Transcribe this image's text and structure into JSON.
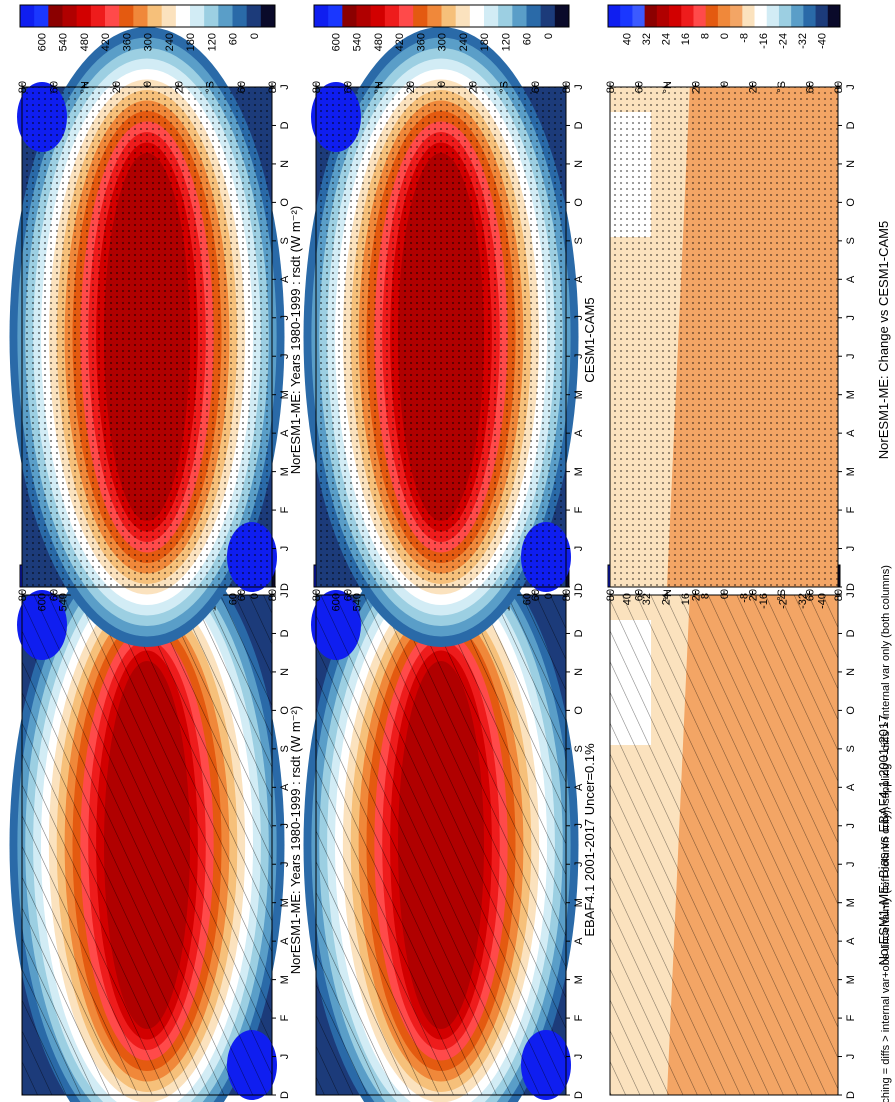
{
  "figure": {
    "footnote": "hatching = diffs > internal var+obs uncertainty (left column only); stippling = diffs > internal var only (both columns)",
    "month_labels": [
      "D",
      "J",
      "F",
      "M",
      "A",
      "M",
      "J",
      "J",
      "A",
      "S",
      "O",
      "N",
      "D",
      "J"
    ],
    "lat_labels": [
      "80",
      "60",
      "°N",
      "20",
      "0",
      "20",
      "°S",
      "60",
      "80"
    ]
  },
  "chart_data": [
    {
      "type": "heatmap",
      "title": "NorESM1-ME: Years 1980-1999 : rsdt (W m⁻²)",
      "field": "climatology",
      "pattern": "hatch",
      "variable": "rsdt",
      "unit": "W m-2",
      "colorbar": [
        "600",
        "540",
        "480",
        "420",
        "360",
        "300",
        "240",
        "180",
        "120",
        "60",
        "0"
      ],
      "colors": [
        "#0f1ef0",
        "#1a37ff",
        "#8b0000",
        "#b00000",
        "#d20000",
        "#ee1c1c",
        "#ff4a4a",
        "#e45a10",
        "#f0883a",
        "#f6c07a",
        "#fbe2be",
        "#ffffff",
        "#d2ecf5",
        "#9ccfe2",
        "#5a9ec8",
        "#2a6aa8",
        "#1c3b7a",
        "#0a0a2a"
      ]
    },
    {
      "type": "heatmap",
      "title": "NorESM1-ME: Years 1980-1999 : rsdt (W m⁻²)",
      "field": "climatology",
      "pattern": "stipple",
      "variable": "rsdt",
      "unit": "W m-2",
      "colorbar": [
        "600",
        "540",
        "480",
        "420",
        "360",
        "300",
        "240",
        "180",
        "120",
        "60",
        "0"
      ],
      "colors": [
        "#0f1ef0",
        "#1a37ff",
        "#8b0000",
        "#b00000",
        "#d20000",
        "#ee1c1c",
        "#ff4a4a",
        "#e45a10",
        "#f0883a",
        "#f6c07a",
        "#fbe2be",
        "#ffffff",
        "#d2ecf5",
        "#9ccfe2",
        "#5a9ec8",
        "#2a6aa8",
        "#1c3b7a",
        "#0a0a2a"
      ]
    },
    {
      "type": "heatmap",
      "title": "EBAF4.1 2001-2017 Uncer=0.1%",
      "field": "climatology",
      "pattern": "hatch",
      "variable": "rsdt",
      "unit": "W m-2",
      "colorbar": [
        "600",
        "540",
        "480",
        "420",
        "360",
        "300",
        "240",
        "180",
        "120",
        "60",
        "0"
      ],
      "colors": [
        "#0f1ef0",
        "#1a37ff",
        "#8b0000",
        "#b00000",
        "#d20000",
        "#ee1c1c",
        "#ff4a4a",
        "#e45a10",
        "#f0883a",
        "#f6c07a",
        "#fbe2be",
        "#ffffff",
        "#d2ecf5",
        "#9ccfe2",
        "#5a9ec8",
        "#2a6aa8",
        "#1c3b7a",
        "#0a0a2a"
      ]
    },
    {
      "type": "heatmap",
      "title": "CESM1-CAM5",
      "field": "climatology",
      "pattern": "stipple",
      "variable": "rsdt",
      "unit": "W m-2",
      "colorbar": [
        "600",
        "540",
        "480",
        "420",
        "360",
        "300",
        "240",
        "180",
        "120",
        "60",
        "0"
      ],
      "colors": [
        "#0f1ef0",
        "#1a37ff",
        "#8b0000",
        "#b00000",
        "#d20000",
        "#ee1c1c",
        "#ff4a4a",
        "#e45a10",
        "#f0883a",
        "#f6c07a",
        "#fbe2be",
        "#ffffff",
        "#d2ecf5",
        "#9ccfe2",
        "#5a9ec8",
        "#2a6aa8",
        "#1c3b7a",
        "#0a0a2a"
      ]
    },
    {
      "type": "heatmap",
      "title": "NorESM1-ME: Bias vs EBAF4.1 2001-2017",
      "field": "difference",
      "pattern": "hatch",
      "variable": "rsdt",
      "unit": "W m-2",
      "colorbar": [
        "40",
        "32",
        "24",
        "16",
        "8",
        "0",
        "-8",
        "-16",
        "-24",
        "-32",
        "-40"
      ],
      "colors": [
        "#0f1ef0",
        "#1a37ff",
        "#3c5aff",
        "#8b0000",
        "#b00000",
        "#d20000",
        "#ee1c1c",
        "#ff4a4a",
        "#e45a10",
        "#f0883a",
        "#f3a565",
        "#fbe2be",
        "#ffffff",
        "#d2ecf5",
        "#9ccfe2",
        "#5a9ec8",
        "#2a6aa8",
        "#1c3b7a",
        "#0a0a2a"
      ]
    },
    {
      "type": "heatmap",
      "title": "NorESM1-ME: Change vs CESM1-CAM5",
      "field": "difference",
      "pattern": "stipple",
      "variable": "rsdt",
      "unit": "W m-2",
      "colorbar": [
        "40",
        "32",
        "24",
        "16",
        "8",
        "0",
        "-8",
        "-16",
        "-24",
        "-32",
        "-40"
      ],
      "colors": [
        "#0f1ef0",
        "#1a37ff",
        "#3c5aff",
        "#8b0000",
        "#b00000",
        "#d20000",
        "#ee1c1c",
        "#ff4a4a",
        "#e45a10",
        "#f0883a",
        "#f3a565",
        "#fbe2be",
        "#ffffff",
        "#d2ecf5",
        "#9ccfe2",
        "#5a9ec8",
        "#2a6aa8",
        "#1c3b7a",
        "#0a0a2a"
      ]
    }
  ]
}
